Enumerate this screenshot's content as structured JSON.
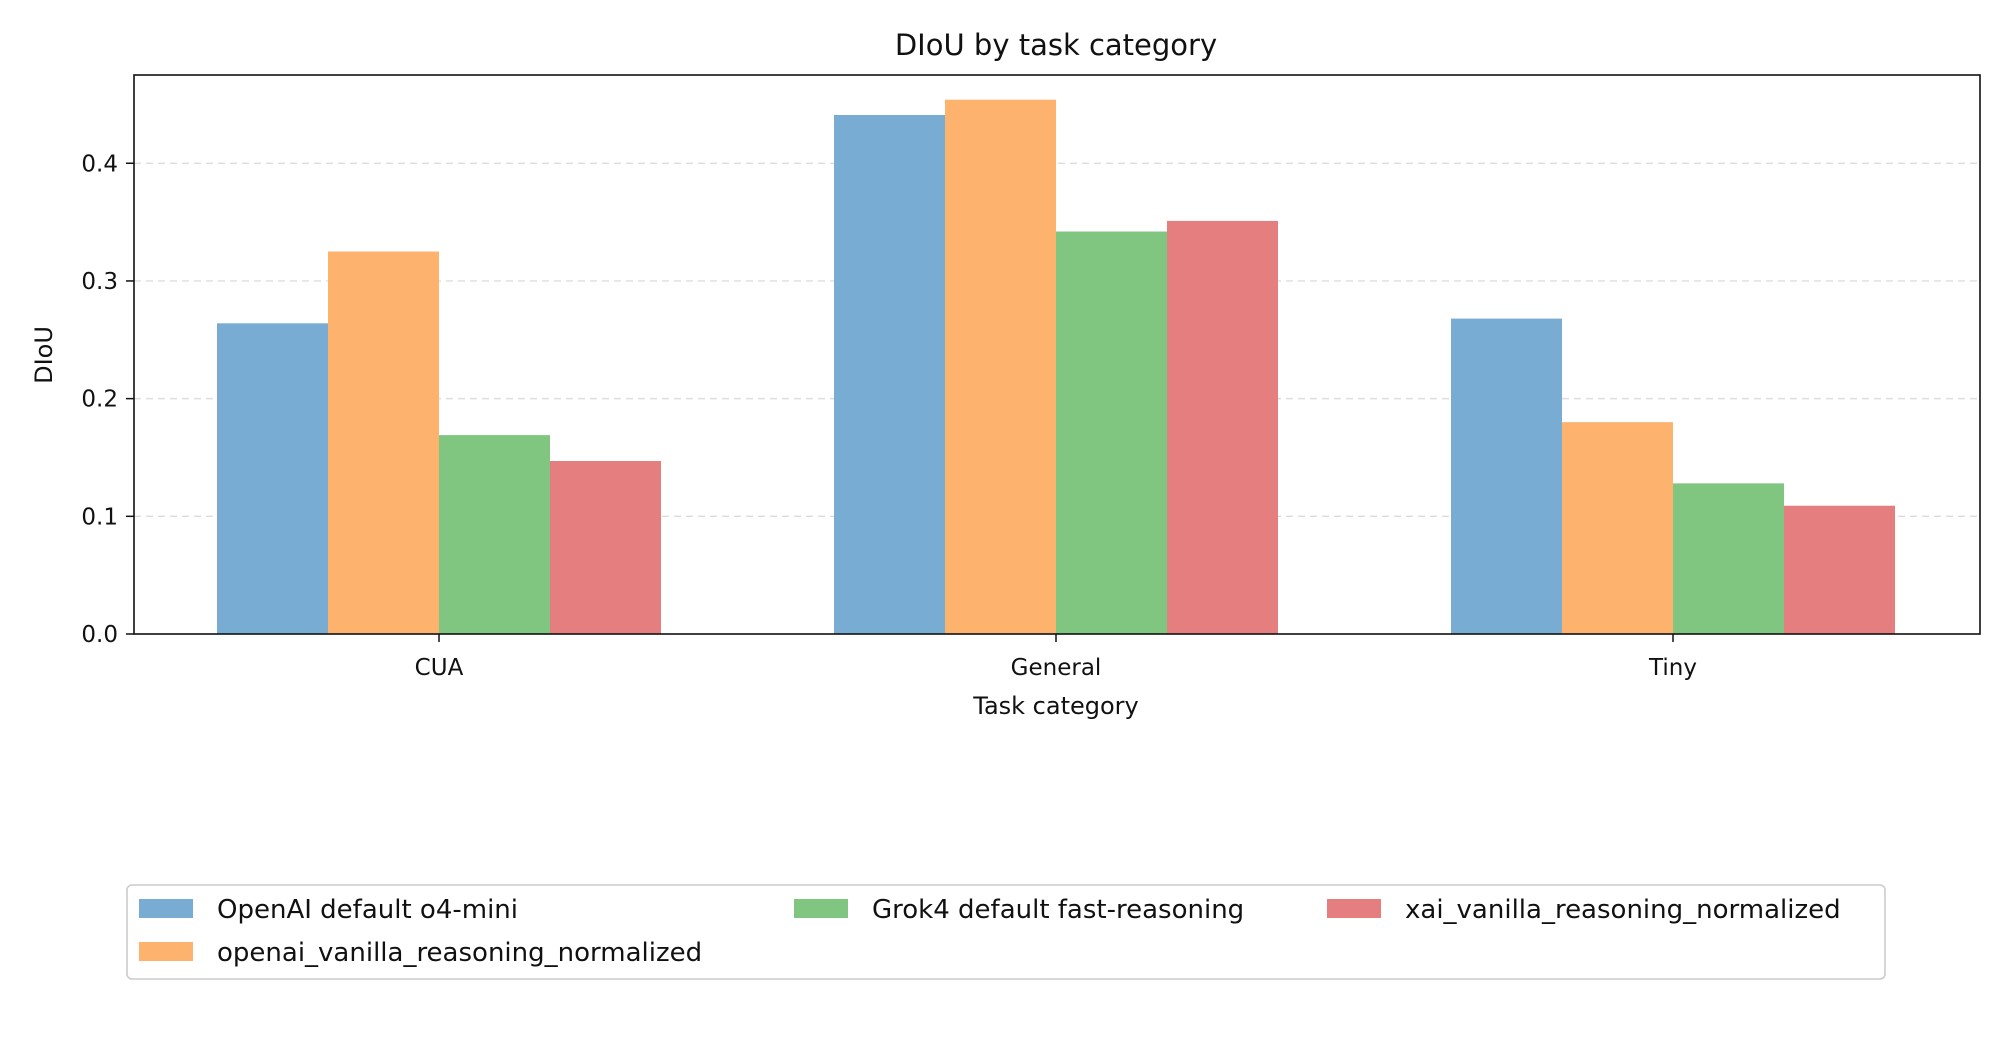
{
  "chart_data": {
    "type": "bar",
    "title": "DIoU by task category",
    "xlabel": "Task category",
    "ylabel": "DIoU",
    "categories": [
      "CUA",
      "General",
      "Tiny"
    ],
    "ylim": [
      0,
      0.475
    ],
    "yticks": [
      0.0,
      0.1,
      0.2,
      0.3,
      0.4
    ],
    "ytick_labels": [
      "0.0",
      "0.1",
      "0.2",
      "0.3",
      "0.4"
    ],
    "grid": "y-dashed",
    "legend_position": "bottom",
    "series": [
      {
        "name": "OpenAI default o4-mini",
        "color": "#79acd2",
        "values": [
          0.264,
          0.441,
          0.268
        ]
      },
      {
        "name": "openai_vanilla_reasoning_normalized",
        "color": "#fdb26e",
        "values": [
          0.325,
          0.454,
          0.18
        ]
      },
      {
        "name": "Grok4 default fast-reasoning",
        "color": "#80c580",
        "values": [
          0.169,
          0.342,
          0.128
        ]
      },
      {
        "name": "xai_vanilla_reasoning_normalized",
        "color": "#e57e7e",
        "values": [
          0.147,
          0.351,
          0.109
        ]
      }
    ]
  }
}
